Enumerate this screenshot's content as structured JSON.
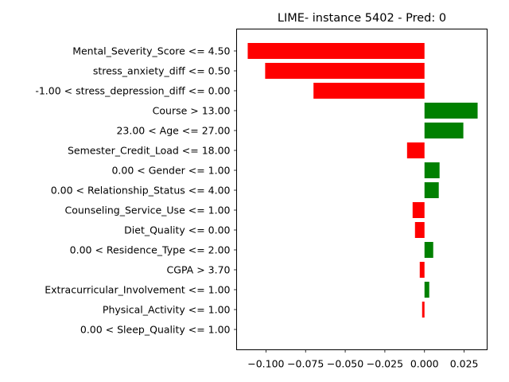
{
  "chart_data": {
    "type": "bar",
    "orientation": "horizontal",
    "title": "LIME- instance 5402 - Pred: 0",
    "xlabel": "",
    "ylabel": "",
    "xlim": [
      -0.1185,
      0.0395
    ],
    "xticks": [
      -0.1,
      -0.075,
      -0.05,
      -0.025,
      0.0,
      0.025
    ],
    "xtick_labels": [
      "−0.100",
      "−0.075",
      "−0.050",
      "−0.025",
      "0.000",
      "0.025"
    ],
    "grid": false,
    "colors": {
      "negative": "#ff0000",
      "positive": "#008000"
    },
    "categories": [
      "Mental_Severity_Score <= 4.50",
      "stress_anxiety_diff <= 0.50",
      "-1.00 < stress_depression_diff <= 0.00",
      "Course > 13.00",
      "23.00 < Age <= 27.00",
      "Semester_Credit_Load <= 18.00",
      "0.00 < Gender <= 1.00",
      "0.00 < Relationship_Status <= 4.00",
      "Counseling_Service_Use <= 1.00",
      "Diet_Quality <= 0.00",
      "0.00 < Residence_Type <= 2.00",
      "CGPA > 3.70",
      "Extracurricular_Involvement <= 1.00",
      "Physical_Activity <= 1.00",
      "0.00 < Sleep_Quality <= 1.00"
    ],
    "values": [
      -0.1115,
      -0.1005,
      -0.07,
      0.0335,
      0.0245,
      -0.011,
      0.0095,
      0.009,
      -0.0075,
      -0.006,
      0.0055,
      -0.003,
      0.003,
      -0.0015,
      0.0
    ]
  }
}
